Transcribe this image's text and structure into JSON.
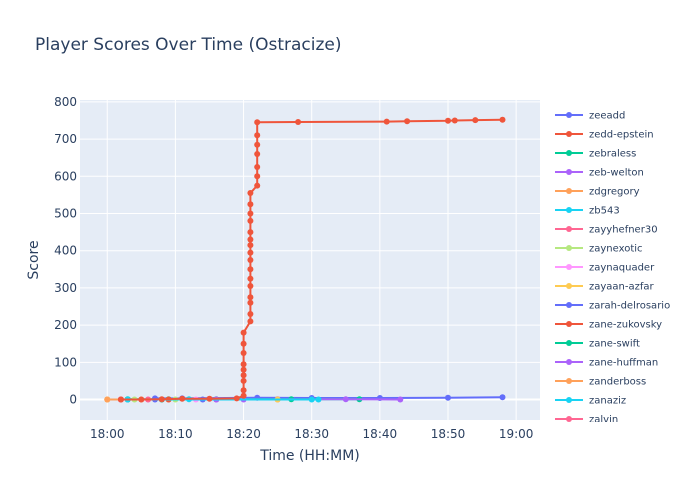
{
  "chart_data": {
    "type": "line",
    "title": "Player Scores Over Time (Ostracize)",
    "xlabel": "Time (HH:MM)",
    "ylabel": "Score",
    "x_ticks": [
      "18:00",
      "18:10",
      "18:20",
      "18:30",
      "18:40",
      "18:50",
      "19:00"
    ],
    "y_ticks": [
      0,
      100,
      200,
      300,
      400,
      500,
      600,
      700,
      800
    ],
    "xlim_minutes_after_18": [
      -4,
      63.5
    ],
    "ylim": [
      -55,
      805
    ],
    "grid": true,
    "legend_position": "right",
    "series": [
      {
        "name": "zeeadd",
        "color": "#636efa",
        "x": [
          "18:07",
          "18:11",
          "18:22",
          "18:30",
          "18:40",
          "18:50",
          "18:58"
        ],
        "y": [
          3,
          3,
          5,
          4,
          4,
          5,
          6
        ]
      },
      {
        "name": "zedd-epstein",
        "color": "#EF553B",
        "x": [
          "18:02",
          "18:05",
          "18:08",
          "18:11",
          "18:15",
          "18:19",
          "18:20",
          "18:20",
          "18:20",
          "18:20",
          "18:20",
          "18:20",
          "18:20",
          "18:20",
          "18:20",
          "18:21",
          "18:21",
          "18:21",
          "18:21",
          "18:21",
          "18:21",
          "18:21",
          "18:21",
          "18:21",
          "18:21",
          "18:21",
          "18:21",
          "18:21",
          "18:21",
          "18:21",
          "18:21",
          "18:22",
          "18:22",
          "18:22",
          "18:22",
          "18:22",
          "18:22",
          "18:22",
          "18:28",
          "18:41",
          "18:44",
          "18:50",
          "18:51",
          "18:54",
          "18:58"
        ],
        "y": [
          0,
          0,
          1,
          2,
          2,
          3,
          10,
          25,
          50,
          65,
          80,
          95,
          125,
          150,
          180,
          210,
          230,
          260,
          275,
          305,
          325,
          350,
          375,
          395,
          415,
          430,
          450,
          480,
          500,
          525,
          555,
          575,
          600,
          625,
          660,
          685,
          710,
          745,
          746,
          747,
          748,
          749,
          750,
          751,
          752
        ]
      },
      {
        "name": "zebraless",
        "color": "#00cc96",
        "x": [
          "18:03",
          "18:09",
          "18:16",
          "18:27",
          "18:37"
        ],
        "y": [
          1,
          1,
          1,
          1,
          1
        ]
      },
      {
        "name": "zeb-welton",
        "color": "#ab63fa",
        "x": [
          "18:16",
          "18:25",
          "18:35",
          "18:43"
        ],
        "y": [
          0,
          1,
          1,
          0
        ]
      },
      {
        "name": "zdgregory",
        "color": "#FFA15A",
        "x": [
          "18:00",
          "18:09",
          "18:25"
        ],
        "y": [
          0,
          0,
          0
        ]
      },
      {
        "name": "zb543",
        "color": "#19d3f3",
        "x": [
          "18:03",
          "18:12",
          "18:31"
        ],
        "y": [
          0,
          1,
          0
        ]
      },
      {
        "name": "zayyhefner30",
        "color": "#FF6692",
        "x": [
          "18:02",
          "18:08"
        ],
        "y": [
          0,
          0
        ]
      },
      {
        "name": "zaynexotic",
        "color": "#B6E880",
        "x": [
          "18:04",
          "18:10"
        ],
        "y": [
          0,
          0
        ]
      },
      {
        "name": "zaynaquader",
        "color": "#FF97FF",
        "x": [
          "18:06",
          "18:13"
        ],
        "y": [
          0,
          0
        ]
      },
      {
        "name": "zayaan-azfar",
        "color": "#FECB52",
        "x": [
          "18:00",
          "18:25"
        ],
        "y": [
          0,
          0
        ]
      },
      {
        "name": "zarah-delrosario",
        "color": "#636efa",
        "x": [
          "18:07",
          "18:14"
        ],
        "y": [
          0,
          0
        ]
      },
      {
        "name": "zane-zukovsky",
        "color": "#EF553B",
        "x": [
          "18:02",
          "18:09"
        ],
        "y": [
          0,
          0
        ]
      },
      {
        "name": "zane-swift",
        "color": "#00cc96",
        "x": [
          "18:03",
          "18:08"
        ],
        "y": [
          0,
          0
        ]
      },
      {
        "name": "zane-huffman",
        "color": "#ab63fa",
        "x": [
          "18:16",
          "18:20"
        ],
        "y": [
          0,
          0
        ]
      },
      {
        "name": "zanderboss",
        "color": "#FFA15A",
        "x": [
          "18:00",
          "18:05"
        ],
        "y": [
          0,
          0
        ]
      },
      {
        "name": "zanaziz",
        "color": "#19d3f3",
        "x": [
          "18:03",
          "18:30"
        ],
        "y": [
          0,
          0
        ]
      },
      {
        "name": "zalvin",
        "color": "#FF6692",
        "x": [
          "18:02",
          "18:06"
        ],
        "y": [
          0,
          0
        ]
      }
    ]
  }
}
